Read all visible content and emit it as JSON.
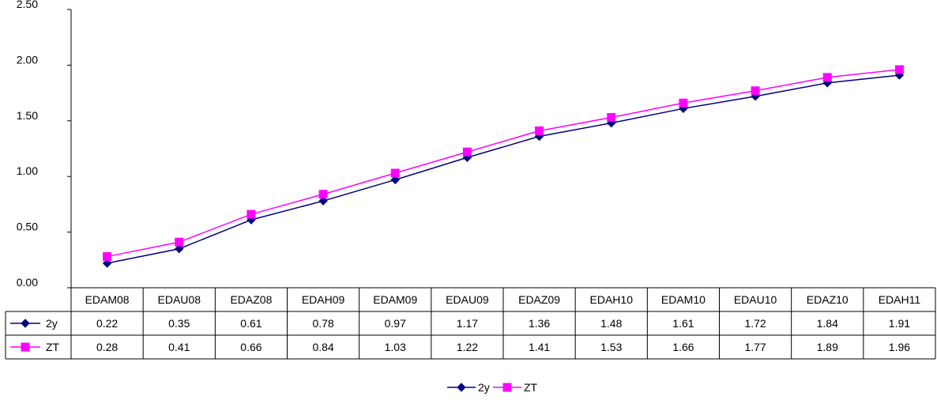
{
  "chart_data": {
    "type": "line",
    "categories": [
      "EDAM08",
      "EDAU08",
      "EDAZ08",
      "EDAH09",
      "EDAM09",
      "EDAU09",
      "EDAZ09",
      "EDAH10",
      "EDAM10",
      "EDAU10",
      "EDAZ10",
      "EDAH11"
    ],
    "series": [
      {
        "name": "2y",
        "values": [
          0.22,
          0.35,
          0.61,
          0.78,
          0.97,
          1.17,
          1.36,
          1.48,
          1.61,
          1.72,
          1.84,
          1.91
        ],
        "color": "#000080",
        "marker": "diamond"
      },
      {
        "name": "ZT",
        "values": [
          0.28,
          0.41,
          0.66,
          0.84,
          1.03,
          1.22,
          1.41,
          1.53,
          1.66,
          1.77,
          1.89,
          1.96
        ],
        "color": "#FF00FF",
        "marker": "square"
      }
    ],
    "y_ticks": [
      "0.00",
      "0.50",
      "1.00",
      "1.50",
      "2.00",
      "2.50"
    ],
    "ylim": [
      0,
      2.5
    ],
    "grid": false,
    "data_table": true,
    "legend_position": "bottom"
  }
}
